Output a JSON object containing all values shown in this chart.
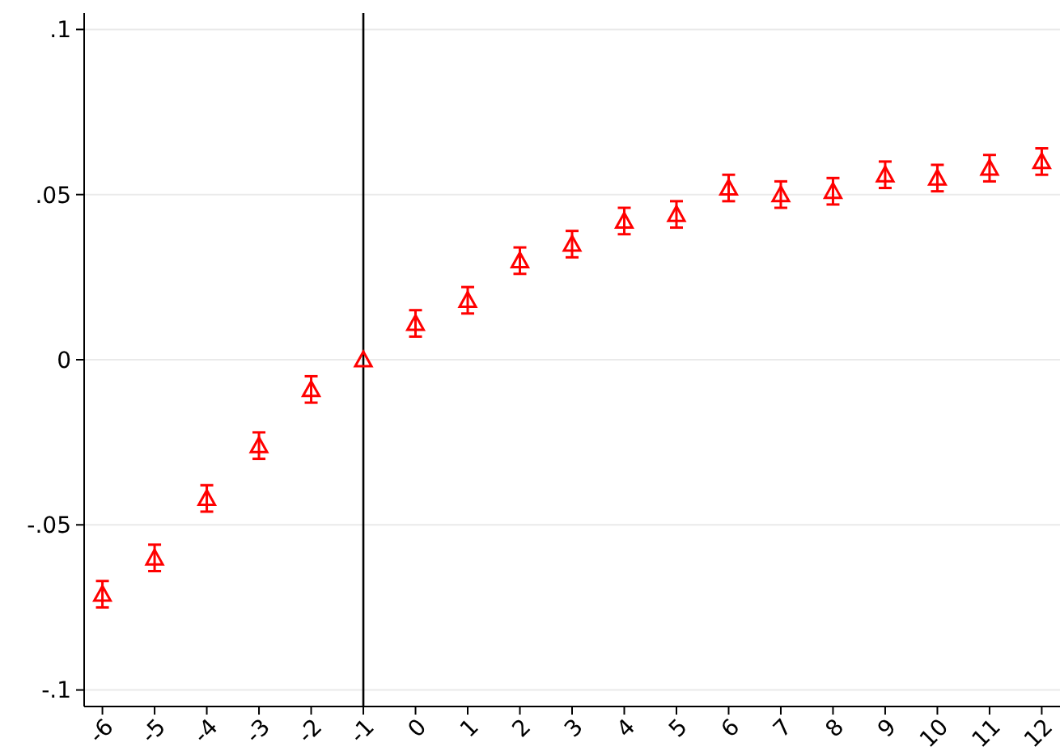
{
  "chart_data": {
    "type": "scatter",
    "x": [
      -6,
      -5,
      -4,
      -3,
      -2,
      -1,
      0,
      1,
      2,
      3,
      4,
      5,
      6,
      7,
      8,
      9,
      10,
      11,
      12
    ],
    "series": [
      {
        "color": "#ff0000",
        "values": [
          -0.071,
          -0.06,
          -0.042,
          -0.026,
          -0.009,
          0,
          0.011,
          0.018,
          0.03,
          0.035,
          0.042,
          0.044,
          0.052,
          0.05,
          0.051,
          0.056,
          0.055,
          0.058,
          0.06
        ],
        "errors": [
          0.004,
          0.004,
          0.004,
          0.004,
          0.004,
          null,
          0.004,
          0.004,
          0.004,
          0.004,
          0.004,
          0.004,
          0.004,
          0.004,
          0.004,
          0.004,
          0.004,
          0.004,
          0.004
        ]
      }
    ],
    "xlim": [
      -6.35,
      12.35
    ],
    "xticks": [
      -6,
      -5,
      -4,
      -3,
      -2,
      -1,
      0,
      1,
      2,
      3,
      4,
      5,
      6,
      7,
      8,
      9,
      10,
      11,
      12
    ],
    "ylim": [
      -0.105,
      0.105
    ],
    "yticks": [
      {
        "value": -0.1,
        "label": "-.1"
      },
      {
        "value": -0.05,
        "label": "-.05"
      },
      {
        "value": 0,
        "label": "0"
      },
      {
        "value": 0.05,
        "label": ".05"
      },
      {
        "value": 0.1,
        "label": ".1"
      }
    ],
    "grid": "y",
    "marker": "triangle",
    "ref_lines": [
      {
        "axis": "x",
        "value": -1,
        "color": "#000000"
      }
    ]
  }
}
